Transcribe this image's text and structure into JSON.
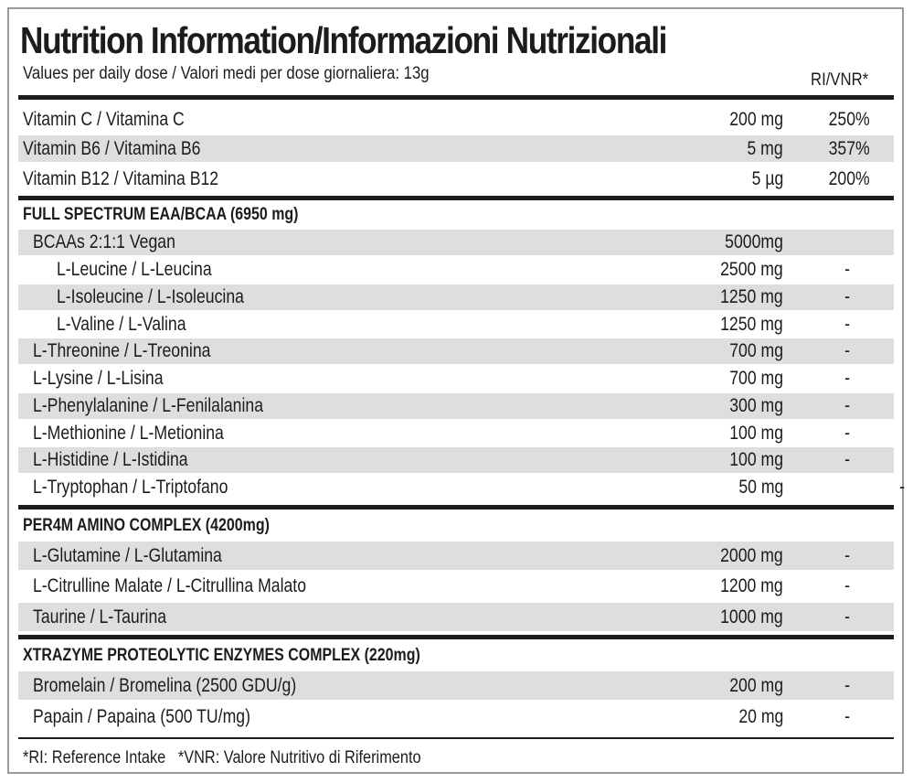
{
  "header": {
    "title": "Nutrition Information/Informazioni Nutrizionali",
    "subtitle": "Values per daily dose / Valori medi per dose giornaliera: 13g",
    "ri_column": "RI/VNR*"
  },
  "vitamins": [
    {
      "name": "Vitamin C / Vitamina C",
      "amount": "200 mg",
      "ri": "250%"
    },
    {
      "name": "Vitamin B6 / Vitamina B6",
      "amount": "5 mg",
      "ri": "357%"
    },
    {
      "name": "Vitamin B12 / Vitamina B12",
      "amount": "5 µg",
      "ri": "200%"
    }
  ],
  "eaa": {
    "heading": "FULL SPECTRUM EAA/BCAA (6950 mg)",
    "rows": [
      {
        "name": "BCAAs 2:1:1 Vegan",
        "amount": "5000mg",
        "ri": ""
      },
      {
        "name": "L-Leucine / L-Leucina",
        "amount": "2500 mg",
        "ri": "-"
      },
      {
        "name": "L-Isoleucine / L-Isoleucina",
        "amount": "1250 mg",
        "ri": "-"
      },
      {
        "name": "L-Valine / L-Valina",
        "amount": "1250 mg",
        "ri": "-"
      },
      {
        "name": "L-Threonine / L-Treonina",
        "amount": "700 mg",
        "ri": "-"
      },
      {
        "name": "L-Lysine / L-Lisina",
        "amount": "700 mg",
        "ri": "-"
      },
      {
        "name": "L-Phenylalanine / L-Fenilalanina",
        "amount": "300 mg",
        "ri": "-"
      },
      {
        "name": "L-Methionine / L-Metionina",
        "amount": "100 mg",
        "ri": "-"
      },
      {
        "name": "L-Histidine / L-Istidina",
        "amount": "100 mg",
        "ri": "-"
      },
      {
        "name": "L-Tryptophan / L-Triptofano",
        "amount": "50 mg",
        "ri": "-"
      }
    ]
  },
  "per4m": {
    "heading": "PER4M AMINO COMPLEX (4200mg)",
    "rows": [
      {
        "name": "L-Glutamine / L-Glutamina",
        "amount": "2000 mg",
        "ri": "-"
      },
      {
        "name": "L-Citrulline Malate / L-Citrullina Malato",
        "amount": "1200 mg",
        "ri": "-"
      },
      {
        "name": "Taurine / L-Taurina",
        "amount": "1000 mg",
        "ri": "-"
      }
    ]
  },
  "xtrazyme": {
    "heading": "XTRAZYME PROTEOLYTIC ENZYMES COMPLEX (220mg)",
    "rows": [
      {
        "name": "Bromelain / Bromelina (2500 GDU/g)",
        "amount": "200 mg",
        "ri": "-"
      },
      {
        "name": "Papain / Papaina (500 TU/mg)",
        "amount": "20 mg",
        "ri": "-"
      }
    ]
  },
  "footnote": "*RI: Reference Intake   *VNR: Valore Nutritivo di Riferimento"
}
